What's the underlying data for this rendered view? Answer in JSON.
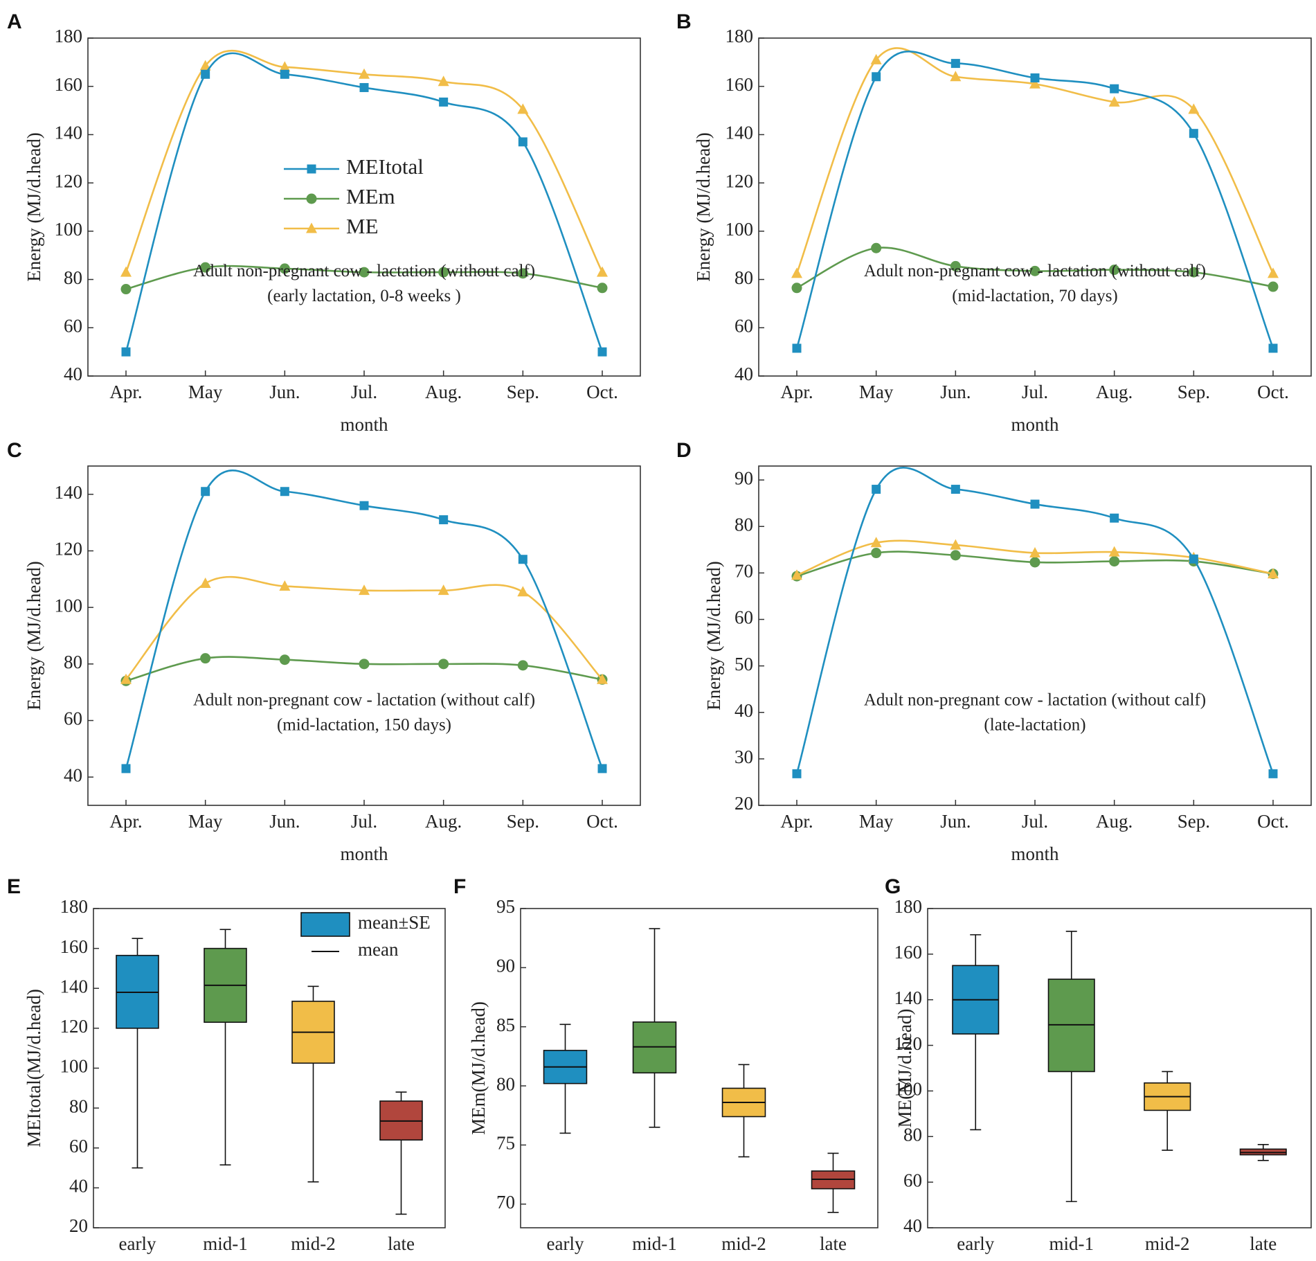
{
  "figure": {
    "panel_letters": [
      "A",
      "B",
      "C",
      "D",
      "E",
      "F",
      "G"
    ]
  },
  "colors": {
    "MEItotal": "#1f8fc0",
    "MEm": "#5e9a4e",
    "ME": "#f1bd48",
    "late": "#b1463d",
    "axis": "#333333"
  },
  "chart_data": [
    {
      "panel": "A",
      "type": "line",
      "categories": [
        "Apr.",
        "May",
        "Jun.",
        "Jul.",
        "Aug.",
        "Sep.",
        "Oct."
      ],
      "xlabel": "month",
      "ylabel": "Energy (MJ/d.head)",
      "ylim": [
        40,
        180
      ],
      "yticks": [
        40,
        60,
        80,
        100,
        120,
        140,
        160,
        180
      ],
      "annotation": [
        "Adult non-pregnant cow - lactation (without calf)",
        "(early lactation, 0-8 weeks )"
      ],
      "legend": {
        "position": "center-left",
        "entries": [
          "MEItotal",
          "MEm",
          "ME"
        ]
      },
      "series": [
        {
          "name": "MEItotal",
          "marker": "square",
          "values": [
            50,
            165,
            165,
            159.5,
            153.5,
            137,
            50
          ]
        },
        {
          "name": "MEm",
          "marker": "circle",
          "values": [
            76,
            85,
            84.5,
            83,
            83,
            82.5,
            76.5
          ]
        },
        {
          "name": "ME",
          "marker": "triangle",
          "values": [
            83,
            168.5,
            168,
            165,
            162,
            150.5,
            83
          ]
        }
      ]
    },
    {
      "panel": "B",
      "type": "line",
      "categories": [
        "Apr.",
        "May",
        "Jun.",
        "Jul.",
        "Aug.",
        "Sep.",
        "Oct."
      ],
      "xlabel": "month",
      "ylabel": "Energy (MJ/d.head)",
      "ylim": [
        40,
        180
      ],
      "yticks": [
        40,
        60,
        80,
        100,
        120,
        140,
        160,
        180
      ],
      "annotation": [
        "Adult non-pregnant cow - lactation (without calf)",
        "(mid-lactation, 70 days)"
      ],
      "series": [
        {
          "name": "MEItotal",
          "marker": "square",
          "values": [
            51.5,
            164,
            169.5,
            163.5,
            159,
            140.5,
            51.5
          ]
        },
        {
          "name": "MEm",
          "marker": "circle",
          "values": [
            76.5,
            93,
            85.5,
            83.5,
            84,
            83,
            77
          ]
        },
        {
          "name": "ME",
          "marker": "triangle",
          "values": [
            82.5,
            171,
            164,
            161,
            153.5,
            150.5,
            82.5
          ]
        }
      ]
    },
    {
      "panel": "C",
      "type": "line",
      "categories": [
        "Apr.",
        "May",
        "Jun.",
        "Jul.",
        "Aug.",
        "Sep.",
        "Oct."
      ],
      "xlabel": "month",
      "ylabel": "Energy (MJ/d.head)",
      "ylim": [
        30,
        150
      ],
      "yticks": [
        40,
        60,
        80,
        100,
        120,
        140
      ],
      "annotation": [
        "Adult non-pregnant cow - lactation (without calf)",
        "(mid-lactation, 150 days)"
      ],
      "series": [
        {
          "name": "MEItotal",
          "marker": "square",
          "values": [
            43,
            141,
            141,
            136,
            131,
            117,
            43
          ]
        },
        {
          "name": "MEm",
          "marker": "circle",
          "values": [
            74,
            82,
            81.5,
            80,
            80,
            79.5,
            74.5
          ]
        },
        {
          "name": "ME",
          "marker": "triangle",
          "values": [
            74.5,
            108.5,
            107.5,
            106,
            106,
            105.5,
            74.5
          ]
        }
      ]
    },
    {
      "panel": "D",
      "type": "line",
      "categories": [
        "Apr.",
        "May",
        "Jun.",
        "Jul.",
        "Aug.",
        "Sep.",
        "Oct."
      ],
      "xlabel": "month",
      "ylabel": "Energy (MJ/d.head)",
      "ylim": [
        20,
        93
      ],
      "yticks": [
        20,
        30,
        40,
        50,
        60,
        70,
        80,
        90
      ],
      "annotation": [
        "Adult non-pregnant cow - lactation (without calf)",
        "(late-lactation)"
      ],
      "series": [
        {
          "name": "MEItotal",
          "marker": "square",
          "values": [
            26.8,
            88,
            88,
            84.8,
            81.8,
            73,
            26.8
          ]
        },
        {
          "name": "MEm",
          "marker": "circle",
          "values": [
            69.3,
            74.3,
            73.8,
            72.3,
            72.5,
            72.5,
            69.8
          ]
        },
        {
          "name": "ME",
          "marker": "triangle",
          "values": [
            69.5,
            76.5,
            76,
            74.3,
            74.5,
            73.3,
            69.8
          ]
        }
      ]
    },
    {
      "panel": "E",
      "type": "box",
      "categories": [
        "early",
        "mid-1",
        "mid-2",
        "late"
      ],
      "ylabel": "MEItotal(MJ/d.head)",
      "ylim": [
        20,
        180
      ],
      "yticks": [
        20,
        40,
        60,
        80,
        100,
        120,
        140,
        160,
        180
      ],
      "legend": {
        "position": "top-right",
        "entries": [
          "mean±SE",
          "mean"
        ]
      },
      "boxes": [
        {
          "min": 50,
          "q1": 120,
          "mean": 138,
          "q3": 156.5,
          "max": 165
        },
        {
          "min": 51.5,
          "q1": 123,
          "mean": 141.5,
          "q3": 160,
          "max": 169.5
        },
        {
          "min": 43,
          "q1": 102.5,
          "mean": 118,
          "q3": 133.5,
          "max": 141
        },
        {
          "min": 26.8,
          "q1": 64,
          "mean": 73.5,
          "q3": 83.5,
          "max": 88
        }
      ]
    },
    {
      "panel": "F",
      "type": "box",
      "categories": [
        "early",
        "mid-1",
        "mid-2",
        "late"
      ],
      "ylabel": "MEm(MJ/d.head)",
      "ylim": [
        68,
        95
      ],
      "yticks": [
        70,
        75,
        80,
        85,
        90,
        95
      ],
      "boxes": [
        {
          "min": 76,
          "q1": 80.2,
          "mean": 81.6,
          "q3": 83,
          "max": 85.2
        },
        {
          "min": 76.5,
          "q1": 81.1,
          "mean": 83.3,
          "q3": 85.4,
          "max": 93.3
        },
        {
          "min": 74,
          "q1": 77.4,
          "mean": 78.6,
          "q3": 79.8,
          "max": 81.8
        },
        {
          "min": 69.3,
          "q1": 71.3,
          "mean": 72.1,
          "q3": 72.8,
          "max": 74.3
        }
      ]
    },
    {
      "panel": "G",
      "type": "box",
      "categories": [
        "early",
        "mid-1",
        "mid-2",
        "late"
      ],
      "ylabel": "ME(MJ/d.head)",
      "ylim": [
        40,
        180
      ],
      "yticks": [
        40,
        60,
        80,
        100,
        120,
        140,
        160,
        180
      ],
      "boxes": [
        {
          "min": 83,
          "q1": 125,
          "mean": 140,
          "q3": 155,
          "max": 168.5
        },
        {
          "min": 51.5,
          "q1": 108.5,
          "mean": 129,
          "q3": 149,
          "max": 170
        },
        {
          "min": 74,
          "q1": 91.5,
          "mean": 97.5,
          "q3": 103.5,
          "max": 108.5
        },
        {
          "min": 69.5,
          "q1": 72,
          "mean": 73,
          "q3": 74.5,
          "max": 76.5
        }
      ]
    }
  ]
}
